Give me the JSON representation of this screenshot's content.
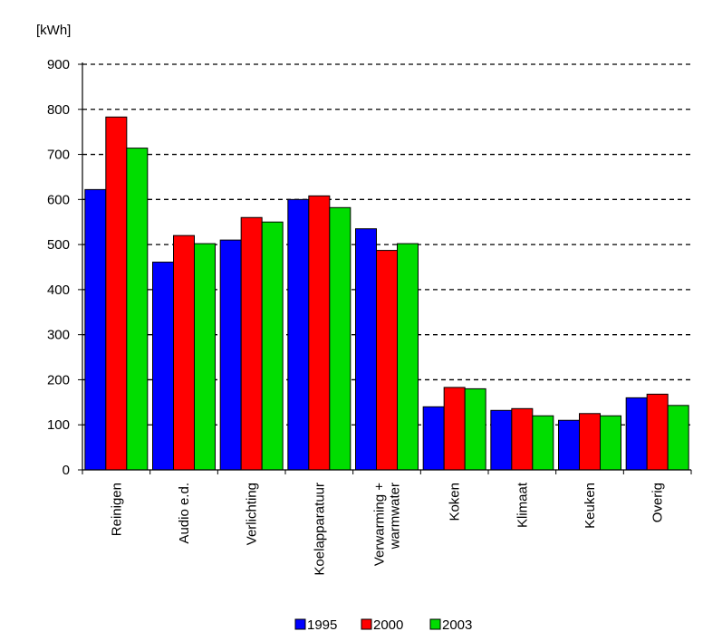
{
  "chart_data": {
    "type": "bar",
    "ylabel": "[kWh]",
    "ylim": [
      0,
      900
    ],
    "yticks": [
      0,
      100,
      200,
      300,
      400,
      500,
      600,
      700,
      800,
      900
    ],
    "grid": true,
    "legend_position": "bottom",
    "categories": [
      [
        "Reinigen"
      ],
      [
        "Audio e.d."
      ],
      [
        "Verlichting"
      ],
      [
        "Koelapparatuur"
      ],
      [
        "Verwarming +",
        "warmwater"
      ],
      [
        "Koken"
      ],
      [
        "Klimaat"
      ],
      [
        "Keuken"
      ],
      [
        "Overig"
      ]
    ],
    "series": [
      {
        "name": "1995",
        "color": "#0000ff",
        "values": [
          622,
          461,
          510,
          600,
          535,
          140,
          132,
          110,
          160
        ]
      },
      {
        "name": "2000",
        "color": "#ff0000",
        "values": [
          783,
          520,
          560,
          608,
          487,
          183,
          136,
          125,
          168
        ]
      },
      {
        "name": "2003",
        "color": "#00dd00",
        "values": [
          714,
          502,
          550,
          582,
          502,
          180,
          120,
          120,
          143
        ]
      }
    ]
  }
}
